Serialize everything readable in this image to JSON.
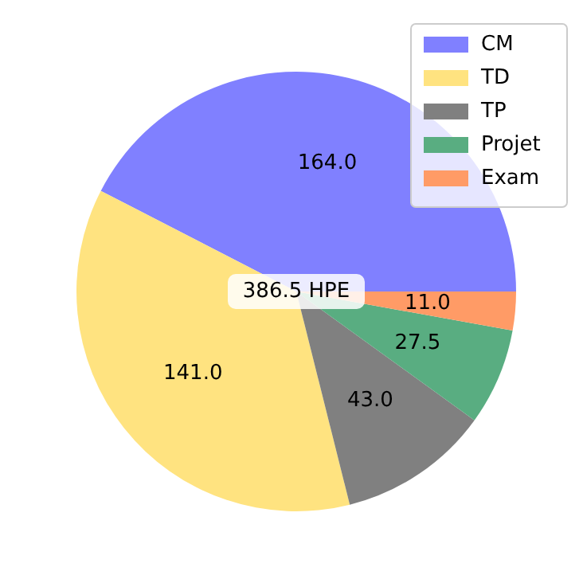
{
  "chart_data": {
    "type": "pie",
    "categories": [
      "CM",
      "TD",
      "TP",
      "Projet",
      "Exam"
    ],
    "values": [
      164,
      141,
      43,
      27.5,
      11
    ],
    "colors": [
      "#8080ff",
      "#ffe380",
      "#808080",
      "#59ad81",
      "#ff9b66"
    ],
    "value_labels": [
      "164.0",
      "141.0",
      "43.0",
      "27.5",
      "11.0"
    ],
    "annotations": [
      "386.5 HPE"
    ],
    "legend": "top right"
  }
}
